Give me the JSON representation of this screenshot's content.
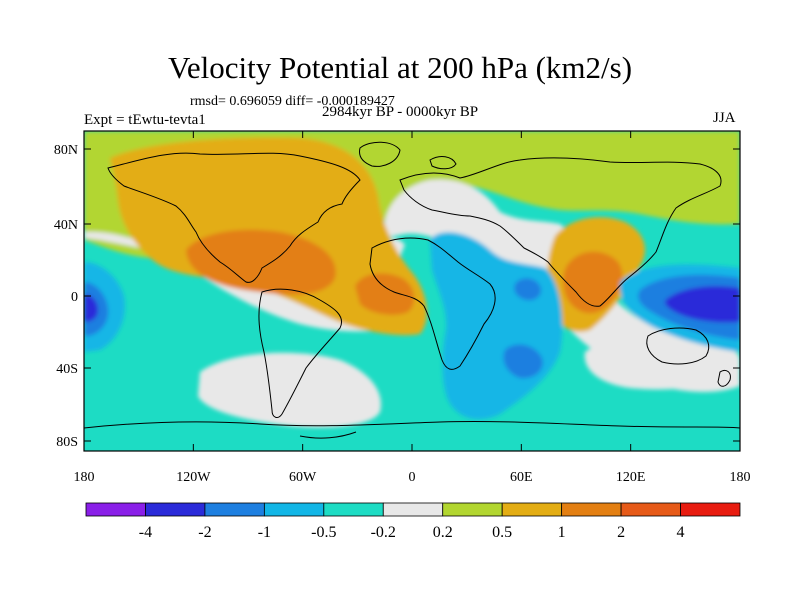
{
  "title": "Velocity Potential at 200 hPa (km2/s)",
  "stats": "rmsd= 0.696059 diff= -0.000189427",
  "left_string": "Expt = tEwtu-tevta1",
  "center_string": "2984kyr BP - 0000kyr BP",
  "right_string": "JJA",
  "lat_ticks": [
    "80N",
    "40N",
    "0",
    "40S",
    "80S"
  ],
  "lon_ticks": [
    "180",
    "120W",
    "60W",
    "0",
    "60E",
    "120E",
    "180"
  ],
  "colorbar": {
    "colors": [
      "#8a1fe8",
      "#2b2bd9",
      "#1e7fe0",
      "#12b6e6",
      "#1ddcc4",
      "#e8e8e8",
      "#b2d630",
      "#e3ad14",
      "#e37f12",
      "#e65a18",
      "#e81c10"
    ],
    "labels": [
      "-4",
      "-2",
      "-1",
      "-0.5",
      "-0.2",
      "0.2",
      "0.5",
      "1",
      "2",
      "4"
    ]
  }
}
